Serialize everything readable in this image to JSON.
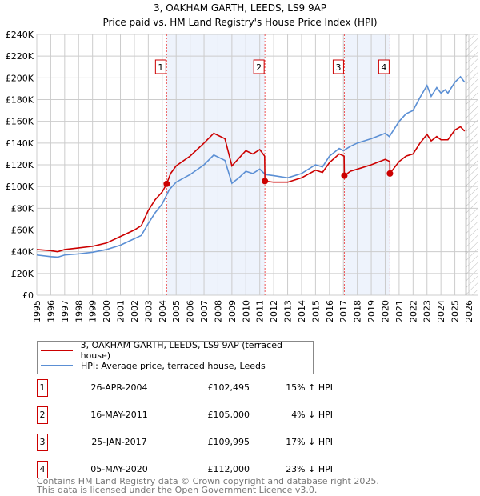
{
  "chart_data": {
    "type": "line",
    "title": "3, OAKHAM GARTH, LEEDS, LS9 9AP",
    "subtitle": "Price paid vs. HM Land Registry's House Price Index (HPI)",
    "xlim": [
      1995,
      2026.6
    ],
    "ylim": [
      0,
      240000
    ],
    "x_ticks": [
      "1995",
      "1996",
      "1997",
      "1998",
      "1999",
      "2000",
      "2001",
      "2002",
      "2003",
      "2004",
      "2005",
      "2006",
      "2007",
      "2008",
      "2009",
      "2010",
      "2011",
      "2012",
      "2013",
      "2014",
      "2015",
      "2016",
      "2017",
      "2018",
      "2019",
      "2020",
      "2021",
      "2022",
      "2023",
      "2024",
      "2025",
      "2026"
    ],
    "y_ticks": [
      "£0",
      "£20K",
      "£40K",
      "£60K",
      "£80K",
      "£100K",
      "£120K",
      "£140K",
      "£160K",
      "£180K",
      "£200K",
      "£220K",
      "£240K"
    ],
    "grid": true,
    "shaded_periods": [
      [
        2004.32,
        2011.37
      ],
      [
        2017.07,
        2020.34
      ]
    ],
    "forecast_hatch_from": 2025.8,
    "series": [
      {
        "name": "3, OAKHAM GARTH, LEEDS, LS9 9AP (terraced house)",
        "color": "#cc0000",
        "x": [
          1995,
          1996,
          1996.5,
          1997,
          1998,
          1999,
          2000,
          2001,
          2002,
          2002.5,
          2003,
          2003.5,
          2004,
          2004.32,
          2004.6,
          2005,
          2006,
          2007,
          2007.7,
          2008.5,
          2009,
          2009.5,
          2010,
          2010.5,
          2011,
          2011.35,
          2011.37,
          2012,
          2013,
          2014,
          2015,
          2015.5,
          2016,
          2016.7,
          2017.05,
          2017.07,
          2017.5,
          2018,
          2019,
          2020,
          2020.33,
          2020.34,
          2021,
          2021.5,
          2022,
          2022.5,
          2023,
          2023.3,
          2023.7,
          2024,
          2024.5,
          2025,
          2025.4,
          2025.7
        ],
        "y": [
          42000,
          41000,
          40000,
          42000,
          43500,
          45000,
          48000,
          54000,
          60000,
          64000,
          78000,
          88000,
          95000,
          102495,
          112000,
          119000,
          128000,
          140000,
          149000,
          144000,
          119000,
          126000,
          133000,
          130000,
          134000,
          128000,
          105000,
          104000,
          104000,
          108000,
          115000,
          113000,
          122000,
          130000,
          128000,
          109995,
          114000,
          116000,
          120000,
          125000,
          123000,
          112000,
          123000,
          128000,
          130000,
          140000,
          148000,
          142000,
          146000,
          143000,
          143000,
          152000,
          155000,
          151000
        ]
      },
      {
        "name": "HPI: Average price, terraced house, Leeds",
        "color": "#5b8fd4",
        "x": [
          1995,
          1996,
          1996.5,
          1997,
          1998,
          1999,
          2000,
          2001,
          2002,
          2002.5,
          2003,
          2003.5,
          2004,
          2004.5,
          2005,
          2006,
          2007,
          2007.7,
          2008.5,
          2009,
          2009.5,
          2010,
          2010.5,
          2011,
          2011.4,
          2012,
          2013,
          2014,
          2015,
          2015.5,
          2016,
          2016.7,
          2017,
          2017.5,
          2018,
          2019,
          2020,
          2020.3,
          2021,
          2021.5,
          2022,
          2022.5,
          2023,
          2023.3,
          2023.7,
          2024,
          2024.3,
          2024.5,
          2025,
          2025.4,
          2025.7
        ],
        "y": [
          37000,
          35500,
          35000,
          37000,
          38000,
          39500,
          42000,
          46000,
          52000,
          55000,
          66000,
          76000,
          84000,
          97000,
          104000,
          111000,
          120000,
          129000,
          124000,
          103000,
          108000,
          114000,
          112000,
          116000,
          111000,
          110000,
          108000,
          112000,
          120000,
          118000,
          128000,
          135000,
          133000,
          137000,
          140000,
          144000,
          149000,
          146000,
          160000,
          167000,
          170000,
          182000,
          193000,
          183000,
          191000,
          186000,
          189000,
          186000,
          196000,
          201000,
          196000
        ]
      }
    ],
    "sales": [
      {
        "label": "1",
        "date": "26-APR-2004",
        "x": 2004.32,
        "price": 102495,
        "price_text": "£102,495",
        "hpi_text": "15% ↑ HPI"
      },
      {
        "label": "2",
        "date": "16-MAY-2011",
        "x": 2011.37,
        "price": 105000,
        "price_text": "£105,000",
        "hpi_text": "4% ↓ HPI"
      },
      {
        "label": "3",
        "date": "25-JAN-2017",
        "x": 2017.07,
        "price": 109995,
        "price_text": "£109,995",
        "hpi_text": "17% ↓ HPI"
      },
      {
        "label": "4",
        "date": "05-MAY-2020",
        "x": 2020.34,
        "price": 112000,
        "price_text": "£112,000",
        "hpi_text": "23% ↓ HPI"
      }
    ]
  },
  "legend": {
    "property": "3, OAKHAM GARTH, LEEDS, LS9 9AP (terraced house)",
    "hpi": "HPI: Average price, terraced house, Leeds"
  },
  "footer": {
    "line1": "Contains HM Land Registry data © Crown copyright and database right 2025.",
    "line2": "This data is licensed under the Open Government Licence v3.0."
  }
}
